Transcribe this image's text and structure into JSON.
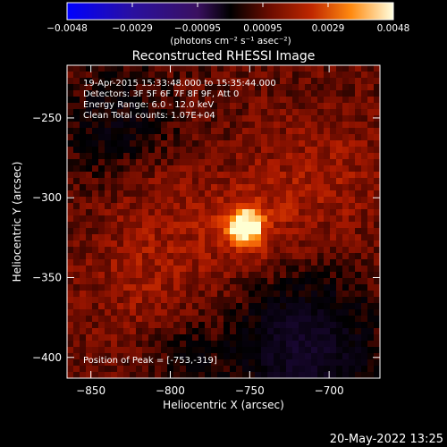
{
  "colorbar": {
    "ticks": [
      "-0.0048",
      "-0.0029",
      "-0.00095",
      "0.00095",
      "0.0029",
      "0.0048"
    ],
    "units_label": "(photons cm⁻² s⁻¹ asec⁻²)",
    "min": -0.0048,
    "max": 0.0048
  },
  "plot": {
    "title": "Reconstructed RHESSI Image",
    "annotations": [
      "19-Apr-2015 15:33:48.000 to 15:35:44.000",
      "Detectors: 3F 5F 6F 7F 8F 9F, Att 0",
      "Energy Range: 6.0 - 12.0 keV",
      "Clean    Total counts: 1.07E+04"
    ],
    "peak_label": "Position of Peak = [-753,-319]"
  },
  "footer": {
    "timestamp": "20-May-2022 13:25"
  },
  "chart_data": {
    "type": "heatmap",
    "title": "Reconstructed RHESSI Image",
    "xlabel": "Heliocentric X (arcsec)",
    "ylabel": "Heliocentric Y (arcsec)",
    "xlim": [
      -865,
      -668
    ],
    "ylim": [
      -413,
      -217
    ],
    "x_ticks": [
      -850,
      -800,
      -750,
      -700
    ],
    "x_tick_labels": [
      "−850",
      "−800",
      "−750",
      "−700"
    ],
    "y_ticks": [
      -250,
      -300,
      -350,
      -400
    ],
    "y_tick_labels": [
      "−250",
      "−300",
      "−350",
      "−400"
    ],
    "peak": {
      "x": -753,
      "y": -319
    },
    "colormap": [
      "#0000ff",
      "#1a0a8c",
      "#2a1660",
      "#000000",
      "#5a0a00",
      "#a01800",
      "#e03c00",
      "#ff7a10",
      "#ffc040",
      "#ffffd0"
    ]
  }
}
